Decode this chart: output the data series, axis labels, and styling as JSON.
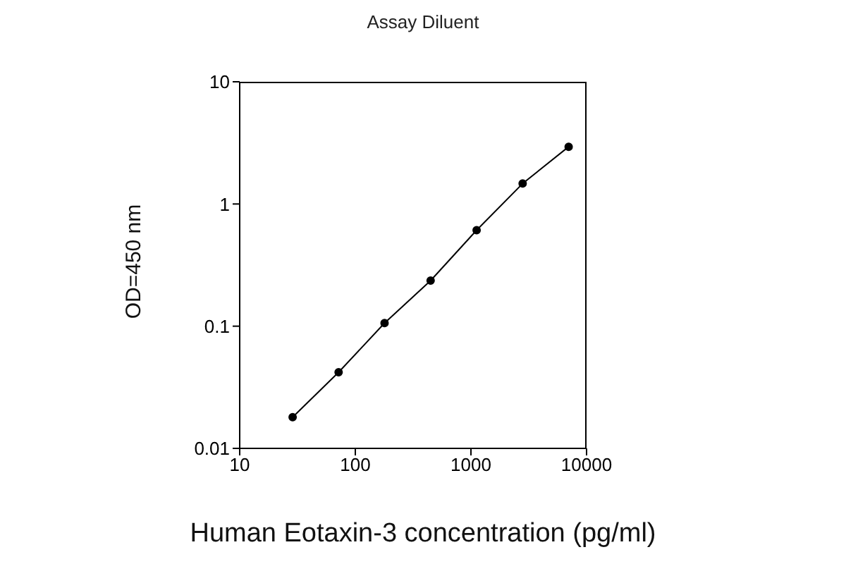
{
  "chart_data": {
    "type": "line",
    "title": "Assay Diluent",
    "xlabel": "Human Eotaxin-3 concentration (pg/ml)",
    "ylabel": "OD=450 nm",
    "x": [
      28.7,
      71.7,
      179,
      448,
      1120,
      2800,
      7000
    ],
    "series": [
      {
        "color": "#000000",
        "values": [
          0.018,
          0.042,
          0.106,
          0.236,
          0.61,
          1.47,
          2.94
        ]
      }
    ],
    "log": "xy",
    "xlim": [
      10,
      10000
    ],
    "xticks": [
      10,
      100,
      1000,
      10000
    ],
    "ylim": [
      0.01,
      10
    ],
    "yticks": [
      0.01,
      0.1,
      1,
      10
    ],
    "grid": false,
    "legend": false,
    "marker": "circle",
    "line_style": "solid"
  }
}
